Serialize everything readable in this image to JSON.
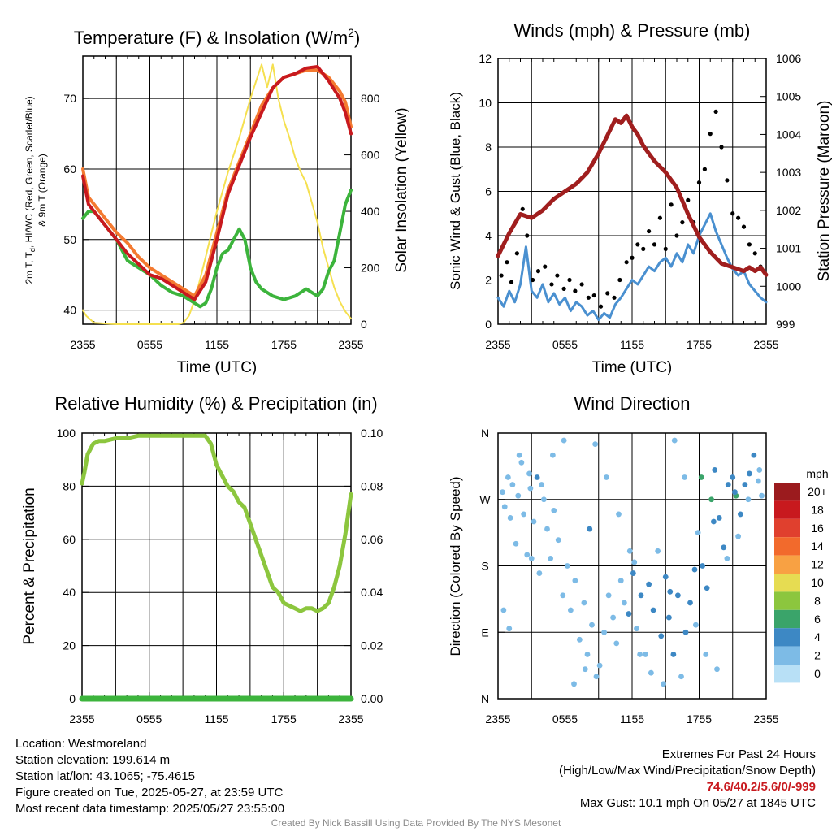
{
  "chart_data": [
    {
      "type": "line",
      "title_main": "Temperature (F) & Insolation (W/m",
      "title_sup": "2",
      "title_end": ")",
      "ylabel_left_line1_parts": [
        "2m T, T",
        "d",
        ", HI/WC (Red, Green, Scarlet/Blue)"
      ],
      "ylabel_left_line2": "& 9m T (Orange)",
      "ylabel_right": "Solar Insolation (Yellow)",
      "xlabel": "Time (UTC)",
      "x_ticks": [
        "2355",
        "0555",
        "1155",
        "1755",
        "2355"
      ],
      "x_range_hours": [
        0,
        24
      ],
      "y_left_range": [
        38,
        76
      ],
      "y_left_ticks": [
        40,
        50,
        60,
        70
      ],
      "y_right_range": [
        0,
        950
      ],
      "y_right_ticks": [
        0,
        200,
        400,
        600,
        800
      ],
      "series": [
        {
          "name": "9m T",
          "color": "#f47a30",
          "axis": "left",
          "x": [
            0,
            0.5,
            1,
            2,
            3,
            4,
            5,
            6,
            7,
            8,
            9,
            10,
            11,
            12,
            13,
            14,
            15,
            16,
            17,
            18,
            19,
            20,
            21,
            22,
            23,
            23.5,
            24
          ],
          "y": [
            60,
            56,
            55,
            53,
            51,
            49.5,
            47.5,
            46,
            45,
            44,
            43,
            42,
            45,
            51,
            57,
            61,
            65,
            69,
            71.5,
            73,
            73.5,
            74,
            74,
            73,
            71,
            69.5,
            66
          ]
        },
        {
          "name": "2m T",
          "color": "#c8191e",
          "axis": "left",
          "x": [
            0,
            0.5,
            1,
            2,
            3,
            4,
            5,
            6,
            7,
            8,
            9,
            10,
            11,
            12,
            13,
            14,
            15,
            16,
            17,
            18,
            19,
            20,
            21,
            22,
            23,
            23.5,
            24
          ],
          "y": [
            59,
            55,
            54,
            52,
            50,
            48,
            46.5,
            45,
            44.5,
            43.5,
            42.5,
            41.5,
            44,
            50,
            56.5,
            60.5,
            64.5,
            68,
            71.5,
            73,
            73.5,
            74.3,
            74.5,
            72.5,
            70,
            68,
            65
          ]
        },
        {
          "name": "Td",
          "color": "#3cb43c",
          "axis": "left",
          "x": [
            0,
            0.5,
            1,
            2,
            3,
            4,
            5,
            6,
            7,
            8,
            9,
            10,
            10.5,
            11,
            11.5,
            12,
            12.5,
            13,
            13.5,
            14,
            14.5,
            15,
            15.5,
            16,
            17,
            18,
            19,
            20,
            21,
            21.5,
            22,
            22.5,
            23,
            23.5,
            24
          ],
          "y": [
            53,
            54,
            54,
            52,
            50,
            47,
            46,
            45,
            43.5,
            42.5,
            42,
            41,
            40.5,
            41,
            43,
            46,
            48,
            48.5,
            50,
            51.5,
            50,
            46,
            44,
            43,
            42,
            41.5,
            42,
            43,
            42,
            43,
            45.5,
            47,
            51,
            55,
            57
          ]
        },
        {
          "name": "Solar Insolation",
          "color": "#f5e050",
          "axis": "right",
          "x": [
            0,
            0.3,
            1,
            3,
            5,
            7,
            8.5,
            9,
            9.5,
            10,
            10.5,
            11,
            11.5,
            12,
            12.5,
            13,
            13.5,
            14,
            14.5,
            15,
            15.5,
            16,
            16.5,
            17,
            17.5,
            18,
            18.5,
            19,
            19.5,
            20,
            20.5,
            21,
            21.5,
            22,
            22.5,
            23,
            23.5,
            24
          ],
          "y": [
            50,
            30,
            5,
            0,
            0,
            0,
            0,
            5,
            30,
            85,
            160,
            240,
            320,
            400,
            470,
            540,
            600,
            660,
            730,
            800,
            860,
            920,
            840,
            920,
            800,
            720,
            660,
            590,
            540,
            500,
            430,
            360,
            270,
            200,
            130,
            80,
            45,
            20
          ]
        }
      ]
    },
    {
      "type": "line",
      "title": "Winds (mph) & Pressure (mb)",
      "ylabel_left": "Sonic Wind & Gust (Blue, Black)",
      "ylabel_right": "Station Pressure (Maroon)",
      "xlabel": "Time (UTC)",
      "x_ticks": [
        "2355",
        "0555",
        "1155",
        "1755",
        "2355"
      ],
      "x_range_hours": [
        0,
        24
      ],
      "y_left_range": [
        0,
        12
      ],
      "y_left_ticks": [
        0,
        2,
        4,
        6,
        8,
        10,
        12
      ],
      "y_right_range": [
        999,
        1006
      ],
      "y_right_ticks": [
        999,
        1000,
        1001,
        1002,
        1003,
        1004,
        1005,
        1006
      ],
      "series": [
        {
          "name": "Station Pressure",
          "color": "#a01e1e",
          "axis": "right",
          "x": [
            0,
            1,
            2,
            3,
            4,
            5,
            6,
            7,
            8,
            9,
            10,
            10.5,
            11,
            11.5,
            12,
            12.5,
            13,
            13.5,
            14,
            15,
            16,
            17,
            18,
            19,
            20,
            21,
            22,
            22.5,
            23,
            23.5,
            24
          ],
          "y": [
            1000.8,
            1001.4,
            1001.9,
            1001.8,
            1002.0,
            1002.3,
            1002.5,
            1002.7,
            1003.0,
            1003.5,
            1004.1,
            1004.4,
            1004.3,
            1004.5,
            1004.2,
            1004.0,
            1003.7,
            1003.5,
            1003.3,
            1003.0,
            1002.6,
            1001.9,
            1001.3,
            1000.9,
            1000.6,
            1000.5,
            1000.4,
            1000.5,
            1000.4,
            1000.5,
            1000.3
          ]
        },
        {
          "name": "Sonic Wind",
          "color": "#4a90d0",
          "axis": "left",
          "x": [
            0,
            0.5,
            1,
            1.5,
            2,
            2.5,
            3,
            3.5,
            4,
            4.5,
            5,
            5.5,
            6,
            6.5,
            7,
            7.5,
            8,
            8.5,
            9,
            9.5,
            10,
            10.5,
            11,
            11.5,
            12,
            12.5,
            13,
            13.5,
            14,
            14.5,
            15,
            15.5,
            16,
            16.5,
            17,
            17.5,
            18,
            18.5,
            19,
            19.5,
            20,
            20.5,
            21,
            21.5,
            22,
            22.5,
            23,
            23.5,
            24
          ],
          "y": [
            1.2,
            0.8,
            1.5,
            1.0,
            1.8,
            3.5,
            1.5,
            1.2,
            1.8,
            1.0,
            1.4,
            0.9,
            1.2,
            0.6,
            1.0,
            0.8,
            0.4,
            0.6,
            0.2,
            0.5,
            0.3,
            0.9,
            1.2,
            1.6,
            2.0,
            1.8,
            2.2,
            2.6,
            2.4,
            2.8,
            3.0,
            2.6,
            3.2,
            2.8,
            3.6,
            3.2,
            4.0,
            4.5,
            5.0,
            4.2,
            3.6,
            3.0,
            2.5,
            2.2,
            2.4,
            1.8,
            1.5,
            1.2,
            1.0
          ]
        },
        {
          "name": "Gust",
          "color": "#000000",
          "axis": "left",
          "mode": "markers",
          "x": [
            0.3,
            0.8,
            1.2,
            1.7,
            2.2,
            2.6,
            3.1,
            3.6,
            4.2,
            4.8,
            5.3,
            5.9,
            6.4,
            6.9,
            7.5,
            8.1,
            8.6,
            9.2,
            9.8,
            10.4,
            10.9,
            11.5,
            12.0,
            12.5,
            13.0,
            13.5,
            14.0,
            14.5,
            15.0,
            15.5,
            16.0,
            16.5,
            17.0,
            17.5,
            18.0,
            18.5,
            19.0,
            19.5,
            20.0,
            20.5,
            21.0,
            21.5,
            22.0,
            22.5,
            23.0,
            23.5
          ],
          "y": [
            2.2,
            2.8,
            1.9,
            3.2,
            5.2,
            4.0,
            2.0,
            2.4,
            2.6,
            1.8,
            2.2,
            1.6,
            2.0,
            1.5,
            1.8,
            1.2,
            1.3,
            0.8,
            1.4,
            1.2,
            2.0,
            2.8,
            3.0,
            3.6,
            3.4,
            4.2,
            3.6,
            4.8,
            3.4,
            5.4,
            4.0,
            4.6,
            5.6,
            4.6,
            6.4,
            7.0,
            8.6,
            9.6,
            8.0,
            6.5,
            5.0,
            4.8,
            4.4,
            3.6,
            3.2,
            2.6
          ]
        }
      ]
    },
    {
      "type": "line",
      "title": "Relative Humidity (%) & Precipitation (in)",
      "ylabel_left": "Percent & Precipitation",
      "x_ticks": [
        "2355",
        "0555",
        "1155",
        "1755",
        "2355"
      ],
      "x_range_hours": [
        0,
        24
      ],
      "y_left_range": [
        0,
        100
      ],
      "y_left_ticks": [
        0,
        20,
        40,
        60,
        80,
        100
      ],
      "y_right_range": [
        0,
        0.1
      ],
      "y_right_ticks": [
        "0.00",
        "0.02",
        "0.04",
        "0.06",
        "0.08",
        "0.10"
      ],
      "series": [
        {
          "name": "Relative Humidity",
          "color": "#8cc63e",
          "axis": "left",
          "x": [
            0,
            0.2,
            0.5,
            1,
            1.5,
            2,
            3,
            4,
            5,
            6,
            7,
            8,
            9,
            10,
            11,
            11.5,
            12,
            12.5,
            13,
            13.5,
            14,
            14.5,
            15,
            15.5,
            16,
            16.5,
            17,
            17.5,
            18,
            18.5,
            19,
            19.5,
            20,
            20.5,
            21,
            21.5,
            22,
            22.5,
            23,
            23.5,
            24
          ],
          "y": [
            81,
            85,
            92,
            96,
            97,
            97,
            98,
            98,
            99,
            99,
            99,
            99,
            99,
            99,
            99,
            96,
            88,
            84,
            80,
            78,
            74,
            72,
            66,
            60,
            54,
            48,
            42,
            40,
            36,
            35,
            34,
            33,
            34,
            34,
            33,
            34,
            36,
            42,
            50,
            62,
            77
          ]
        },
        {
          "name": "Precipitation",
          "color": "#3cb43c",
          "axis": "right",
          "x": [
            0,
            24
          ],
          "y": [
            0,
            0
          ]
        }
      ]
    },
    {
      "type": "scatter",
      "title": "Wind Direction",
      "ylabel": "Direction (Colored By Speed)",
      "x_ticks": [
        "2355",
        "0555",
        "1155",
        "1755",
        "2355"
      ],
      "x_range_hours": [
        0,
        24
      ],
      "y_ticks": [
        "N",
        "E",
        "S",
        "W",
        "N"
      ],
      "y_range_deg": [
        0,
        360
      ],
      "colorbar_label": "mph",
      "colorbar_levels": [
        "20+",
        "18",
        "16",
        "14",
        "12",
        "10",
        "8",
        "6",
        "4",
        "2",
        "0"
      ],
      "colorbar_colors": [
        "#9b1b1e",
        "#c8191e",
        "#e0402e",
        "#f26a2c",
        "#f8a143",
        "#e6dc52",
        "#8cc63e",
        "#3aa46a",
        "#3d88c4",
        "#7dbbe6",
        "#b8e0f6"
      ],
      "x": [
        0.4,
        0.6,
        0.9,
        1.1,
        1.3,
        1.6,
        1.8,
        2.1,
        2.3,
        2.6,
        2.9,
        3.2,
        3.5,
        3.7,
        4.1,
        4.4,
        4.7,
        5.0,
        5.4,
        5.8,
        6.2,
        6.5,
        6.9,
        7.3,
        7.7,
        8.0,
        8.4,
        8.8,
        9.1,
        9.5,
        9.9,
        10.3,
        10.6,
        11.0,
        11.3,
        11.7,
        12.1,
        12.4,
        12.8,
        13.2,
        13.5,
        13.9,
        14.3,
        14.6,
        15.0,
        15.3,
        15.7,
        16.1,
        16.4,
        16.8,
        17.2,
        17.6,
        17.9,
        18.3,
        18.7,
        19.1,
        19.4,
        19.8,
        20.2,
        20.6,
        21.0,
        21.3,
        21.7,
        22.1,
        22.5,
        22.9,
        23.3,
        23.6,
        0.5,
        1.0,
        1.9,
        2.8,
        3.9,
        4.9,
        5.9,
        6.8,
        7.8,
        8.7,
        9.7,
        10.8,
        11.8,
        12.7,
        13.7,
        14.8,
        15.8,
        16.7,
        17.7,
        18.6,
        19.6,
        20.5,
        21.5,
        22.4,
        23.4,
        3.0,
        8.2,
        12.2,
        15.4,
        18.2,
        19.3,
        21.2
      ],
      "y": [
        280,
        260,
        300,
        245,
        290,
        210,
        275,
        320,
        250,
        195,
        285,
        240,
        300,
        170,
        270,
        230,
        190,
        255,
        215,
        140,
        180,
        120,
        160,
        80,
        130,
        60,
        100,
        30,
        45,
        90,
        140,
        110,
        75,
        160,
        130,
        115,
        170,
        95,
        140,
        60,
        155,
        120,
        200,
        85,
        165,
        110,
        60,
        140,
        30,
        90,
        130,
        175,
        225,
        180,
        150,
        270,
        310,
        245,
        205,
        290,
        300,
        275,
        250,
        290,
        305,
        330,
        295,
        275,
        120,
        95,
        330,
        305,
        290,
        330,
        350,
        20,
        40,
        345,
        300,
        250,
        200,
        60,
        35,
        20,
        350,
        300,
        100,
        60,
        40,
        190,
        220,
        270,
        310,
        190,
        230,
        185,
        145,
        300,
        240,
        280
      ],
      "speed": [
        1,
        1,
        1,
        1,
        1,
        1,
        2,
        1,
        1,
        1,
        1,
        1,
        3,
        1,
        1,
        1,
        1,
        1,
        1,
        1,
        1,
        1,
        1,
        1,
        1,
        1,
        1,
        1,
        1,
        1,
        1,
        1,
        1,
        2,
        2,
        3,
        3,
        2,
        3,
        2,
        3,
        3,
        2,
        3,
        3,
        4,
        3,
        3,
        2,
        3,
        3,
        4,
        2,
        4,
        4,
        5,
        4,
        4,
        4,
        4,
        4,
        5,
        4,
        4,
        3,
        3,
        2,
        2,
        1,
        1,
        1,
        1,
        1,
        1,
        1,
        1,
        1,
        1,
        1,
        1,
        1,
        1,
        1,
        2,
        1,
        1,
        1,
        1,
        1,
        1,
        1,
        1,
        1,
        1,
        3,
        2,
        3,
        6,
        3,
        4
      ]
    }
  ],
  "info": {
    "location": "Location: Westmoreland",
    "elevation": "Station elevation: 199.614 m",
    "latlon": "Station lat/lon: 43.1065; -75.4615",
    "created": "Figure created on Tue, 2025-05-27, at 23:59 UTC",
    "recent": "Most recent data timestamp: 2025/05/27 23:55:00"
  },
  "extremes": {
    "heading": "Extremes For Past 24 Hours",
    "legend": "(High/Low/Max Wind/Precipitation/Snow Depth)",
    "values": "74.6/40.2/5.6/0/-999",
    "max_gust": "Max Gust: 10.1 mph On 05/27 at 1845 UTC"
  },
  "credit": "Created By Nick Bassill Using Data Provided By The NYS Mesonet"
}
